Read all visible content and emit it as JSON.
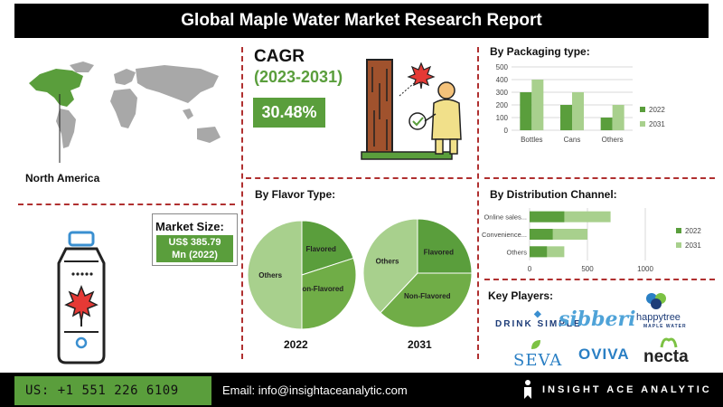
{
  "header": {
    "title": "Global Maple Water Market Research Report"
  },
  "region": {
    "label": "North America"
  },
  "cagr": {
    "title": "CAGR",
    "period": "(2023-2031)",
    "value": "30.48%"
  },
  "market_size": {
    "label": "Market Size:",
    "value_line1": "US$ 385.79",
    "value_line2": "Mn (2022)"
  },
  "flavor": {
    "title": "By Flavor Type:"
  },
  "key_players": {
    "title": "Key Players:",
    "logos": [
      "DRINK SIMPLE",
      "sibberi",
      "happytree",
      "MAPLE WATER",
      "SEVA",
      "OVIVA",
      "necta"
    ]
  },
  "footer": {
    "phone": "US: +1 551 226 6109",
    "email": "Email: info@insightaceanalytic.com",
    "brand": "INSIGHT ACE ANALYTIC"
  },
  "colors": {
    "dark_green": "#5a9e3c",
    "light_green": "#a8d08d",
    "header_bg": "#000000",
    "divider": "#b03030"
  },
  "chart_data": [
    {
      "type": "bar",
      "title": "By Packaging type:",
      "categories": [
        "Bottles",
        "Cans",
        "Others"
      ],
      "series": [
        {
          "name": "2022",
          "values": [
            300,
            200,
            100
          ]
        },
        {
          "name": "2031",
          "values": [
            400,
            300,
            200
          ]
        }
      ],
      "ylim": [
        0,
        500
      ],
      "yticks": [
        0,
        100,
        200,
        300,
        400,
        500
      ],
      "legend": "right"
    },
    {
      "type": "pie",
      "title": "By Flavor Type:",
      "caption": "2022",
      "slices": [
        {
          "label": "Flavored",
          "value": 20,
          "color": "#5a9e3c"
        },
        {
          "label": "Non-Flavored",
          "value": 30,
          "color": "#70ad47"
        },
        {
          "label": "Others",
          "value": 50,
          "color": "#a8d08d"
        }
      ]
    },
    {
      "type": "pie",
      "caption": "2031",
      "slices": [
        {
          "label": "Flavored",
          "value": 25,
          "color": "#5a9e3c"
        },
        {
          "label": "Non-Flavored",
          "value": 37,
          "color": "#70ad47"
        },
        {
          "label": "Others",
          "value": 38,
          "color": "#a8d08d"
        }
      ]
    },
    {
      "type": "bar",
      "orientation": "horizontal",
      "title": "By Distribution Channel:",
      "categories": [
        "Online sales...",
        "Convenience...",
        "Others"
      ],
      "series": [
        {
          "name": "2022",
          "values": [
            300,
            200,
            150
          ]
        },
        {
          "name": "2031",
          "values": [
            700,
            500,
            300
          ]
        }
      ],
      "xlim": [
        0,
        1000
      ],
      "xticks": [
        0,
        500,
        1000
      ],
      "legend": "right"
    }
  ]
}
